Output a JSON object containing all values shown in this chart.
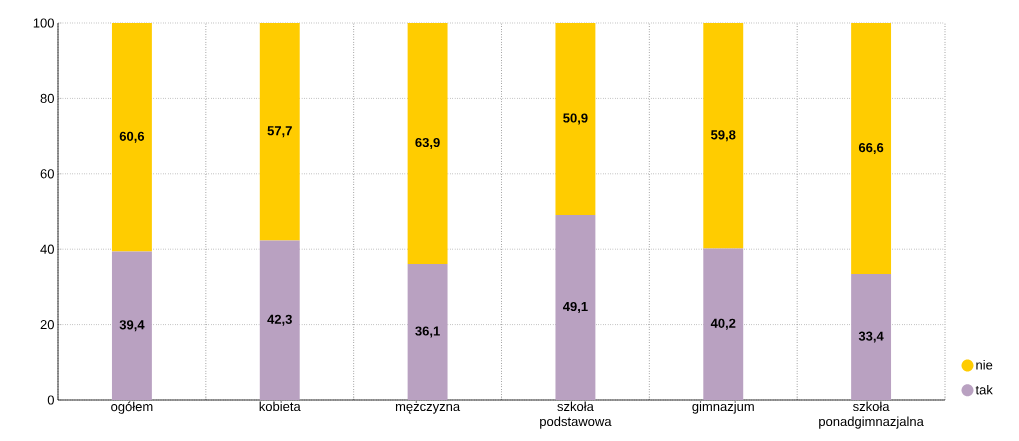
{
  "chart_data": {
    "type": "bar",
    "stacked": true,
    "categories": [
      "ogółem",
      "kobieta",
      "mężczyzna",
      "szkoła podstawowa",
      "gimnazjum",
      "szkoła ponadgimnazjalna"
    ],
    "series": [
      {
        "name": "tak",
        "color": "#b9a1c1",
        "values": [
          39.4,
          42.3,
          36.1,
          49.1,
          40.2,
          33.4
        ],
        "value_labels": [
          "39,4",
          "42,3",
          "36,1",
          "49,1",
          "40,2",
          "33,4"
        ]
      },
      {
        "name": "nie",
        "color": "#ffcc00",
        "values": [
          60.6,
          57.7,
          63.9,
          50.9,
          59.8,
          66.6
        ],
        "value_labels": [
          "60,6",
          "57,7",
          "63,9",
          "50,9",
          "59,8",
          "66,6"
        ]
      }
    ],
    "ylim": [
      0,
      100
    ],
    "yticks": [
      0,
      20,
      40,
      60,
      80,
      100
    ],
    "grid": true,
    "legend": "bottom right"
  }
}
